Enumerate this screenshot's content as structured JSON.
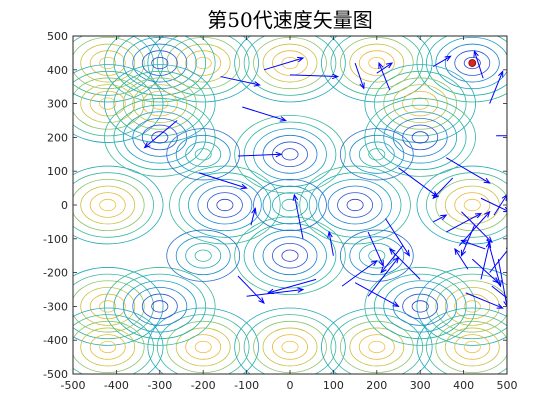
{
  "chart_data": {
    "type": "quiver-contour",
    "title": "第50代速度矢量图",
    "xlabel": "",
    "ylabel": "",
    "xlim": [
      -500,
      500
    ],
    "ylim": [
      -500,
      500
    ],
    "xticks": [
      -500,
      -400,
      -300,
      -200,
      -100,
      0,
      100,
      200,
      300,
      400,
      500
    ],
    "yticks": [
      -500,
      -400,
      -300,
      -200,
      -100,
      0,
      100,
      200,
      300,
      400,
      500
    ],
    "grid": false,
    "legend": "none",
    "colors": {
      "arrow": "#0000ff",
      "best_marker": "#d62728",
      "contour_low": "#2a3dcc",
      "contour_mid": "#1fb0a8",
      "contour_high": "#e6b83a"
    },
    "contour_centers": [
      {
        "x": -420,
        "y": 420,
        "level": "high"
      },
      {
        "x": -200,
        "y": 420,
        "level": "high"
      },
      {
        "x": 0,
        "y": 420,
        "level": "high"
      },
      {
        "x": 200,
        "y": 420,
        "level": "high"
      },
      {
        "x": 420,
        "y": 420,
        "level": "low"
      },
      {
        "x": -420,
        "y": 300,
        "level": "high"
      },
      {
        "x": -300,
        "y": 420,
        "level": "low"
      },
      {
        "x": -300,
        "y": 300,
        "level": "high"
      },
      {
        "x": 300,
        "y": 300,
        "level": "high"
      },
      {
        "x": -420,
        "y": 0,
        "level": "high"
      },
      {
        "x": 420,
        "y": 0,
        "level": "high"
      },
      {
        "x": -420,
        "y": -300,
        "level": "high"
      },
      {
        "x": 420,
        "y": -300,
        "level": "high"
      },
      {
        "x": -420,
        "y": -420,
        "level": "high"
      },
      {
        "x": -200,
        "y": -420,
        "level": "high"
      },
      {
        "x": 0,
        "y": -420,
        "level": "high"
      },
      {
        "x": 200,
        "y": -420,
        "level": "high"
      },
      {
        "x": 420,
        "y": -420,
        "level": "high"
      },
      {
        "x": -300,
        "y": -300,
        "level": "low"
      },
      {
        "x": 300,
        "y": -300,
        "level": "low"
      },
      {
        "x": -300,
        "y": 200,
        "level": "low"
      },
      {
        "x": 300,
        "y": 200,
        "level": "low"
      },
      {
        "x": -150,
        "y": 0,
        "level": "low"
      },
      {
        "x": 150,
        "y": 0,
        "level": "low"
      },
      {
        "x": 0,
        "y": 150,
        "level": "low"
      },
      {
        "x": 0,
        "y": -150,
        "level": "low"
      },
      {
        "x": 0,
        "y": 0,
        "level": "mid"
      },
      {
        "x": -200,
        "y": 150,
        "level": "mid"
      },
      {
        "x": 200,
        "y": 150,
        "level": "mid"
      },
      {
        "x": -200,
        "y": -150,
        "level": "mid"
      },
      {
        "x": 200,
        "y": -150,
        "level": "mid"
      }
    ],
    "best_point": {
      "x": 420,
      "y": 420
    },
    "vectors": [
      {
        "x": -160,
        "y": 380,
        "u": 90,
        "v": -25
      },
      {
        "x": -60,
        "y": 400,
        "u": 90,
        "v": 35
      },
      {
        "x": 0,
        "y": 385,
        "u": 110,
        "v": -5
      },
      {
        "x": 150,
        "y": 420,
        "u": 20,
        "v": -75
      },
      {
        "x": 200,
        "y": 390,
        "u": 35,
        "v": 30
      },
      {
        "x": 230,
        "y": 340,
        "u": -25,
        "v": 80
      },
      {
        "x": 330,
        "y": 410,
        "u": 40,
        "v": 30
      },
      {
        "x": 445,
        "y": 375,
        "u": -20,
        "v": 80
      },
      {
        "x": 460,
        "y": 300,
        "u": 30,
        "v": 95
      },
      {
        "x": 475,
        "y": 205,
        "u": 60,
        "v": 0
      },
      {
        "x": -260,
        "y": 250,
        "u": -75,
        "v": -80
      },
      {
        "x": -110,
        "y": 290,
        "u": 100,
        "v": -40
      },
      {
        "x": -120,
        "y": 145,
        "u": 100,
        "v": 5
      },
      {
        "x": -210,
        "y": 95,
        "u": 110,
        "v": -45
      },
      {
        "x": -90,
        "y": -60,
        "u": 10,
        "v": 50
      },
      {
        "x": 30,
        "y": -100,
        "u": -20,
        "v": 130
      },
      {
        "x": 100,
        "y": -150,
        "u": -10,
        "v": 70
      },
      {
        "x": 180,
        "y": -80,
        "u": 35,
        "v": -100
      },
      {
        "x": 220,
        "y": -40,
        "u": 55,
        "v": -110
      },
      {
        "x": 330,
        "y": -50,
        "u": 30,
        "v": 20
      },
      {
        "x": 360,
        "y": -80,
        "u": 80,
        "v": 55
      },
      {
        "x": 375,
        "y": 80,
        "u": -45,
        "v": -60
      },
      {
        "x": 250,
        "y": 110,
        "u": 90,
        "v": -85
      },
      {
        "x": 360,
        "y": 140,
        "u": 100,
        "v": -75
      },
      {
        "x": 390,
        "y": -120,
        "u": 70,
        "v": 100
      },
      {
        "x": 420,
        "y": -160,
        "u": 60,
        "v": -70
      },
      {
        "x": 440,
        "y": -220,
        "u": 20,
        "v": 110
      },
      {
        "x": 455,
        "y": -100,
        "u": 30,
        "v": -140
      },
      {
        "x": 465,
        "y": -240,
        "u": 60,
        "v": -60
      },
      {
        "x": 470,
        "y": -30,
        "u": 30,
        "v": 60
      },
      {
        "x": 405,
        "y": -260,
        "u": 85,
        "v": -45
      },
      {
        "x": 425,
        "y": -60,
        "u": -30,
        "v": -90
      },
      {
        "x": 450,
        "y": -130,
        "u": -55,
        "v": 25
      },
      {
        "x": 480,
        "y": -160,
        "u": 20,
        "v": -140
      },
      {
        "x": 395,
        "y": -20,
        "u": 70,
        "v": -90
      },
      {
        "x": 440,
        "y": 20,
        "u": 65,
        "v": -40
      },
      {
        "x": 460,
        "y": -200,
        "u": 50,
        "v": 80
      },
      {
        "x": 410,
        "y": -190,
        "u": -30,
        "v": 60
      },
      {
        "x": 120,
        "y": -240,
        "u": 80,
        "v": 75
      },
      {
        "x": 60,
        "y": -220,
        "u": -110,
        "v": -40
      },
      {
        "x": -120,
        "y": -210,
        "u": 60,
        "v": -80
      },
      {
        "x": -100,
        "y": -270,
        "u": 130,
        "v": 20
      },
      {
        "x": 180,
        "y": -270,
        "u": 70,
        "v": 115
      },
      {
        "x": 150,
        "y": -230,
        "u": 100,
        "v": -70
      },
      {
        "x": 300,
        "y": -220,
        "u": -70,
        "v": 90
      },
      {
        "x": 260,
        "y": -120,
        "u": -50,
        "v": -80
      }
    ]
  }
}
